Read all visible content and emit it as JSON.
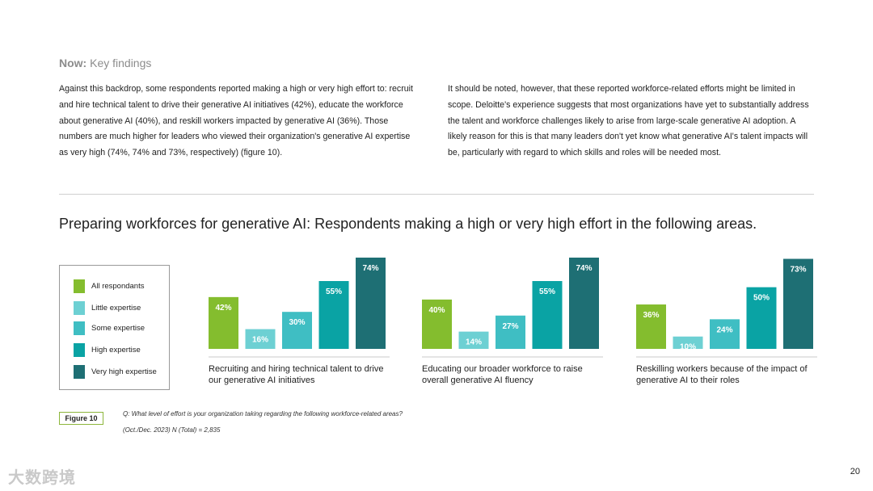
{
  "section": {
    "bold": "Now:",
    "rest": " Key findings"
  },
  "paragraphs": [
    "Against this backdrop, some respondents reported making a high or very high effort to: recruit and hire technical talent to drive their generative AI initiatives (42%), educate the workforce about generative AI (40%), and reskill workers impacted by generative AI (36%). Those numbers are much higher for leaders who viewed their organization's generative AI expertise as very high (74%, 74% and 73%, respectively) (figure 10).",
    "It should be noted, however, that these reported workforce-related efforts might be limited in scope. Deloitte's experience suggests that most organizations have yet to substantially address the talent and workforce challenges likely to arise from large-scale generative AI adoption. A likely reason for this is that many leaders don't yet know what generative AI's talent impacts will be, particularly with regard to which skills and roles will be needed most."
  ],
  "figure_label": "Figure 10",
  "question": "Q: What level of effort is your organization taking regarding the following workforce-related areas?",
  "source": "(Oct./Dec. 2023) N (Total) = 2,835",
  "page_number": "20",
  "watermark": "大数跨境",
  "colors": [
    "#84bd2e",
    "#6dd0d3",
    "#3fbec3",
    "#0aa3a4",
    "#1e6f74"
  ],
  "chart_data": {
    "type": "bar",
    "title": "Preparing workforces for generative AI: Respondents making a high or very high effort in the following areas.",
    "ylim": [
      0,
      74
    ],
    "series_names": [
      "All respondants",
      "Little expertise",
      "Some expertise",
      "High expertise",
      "Very high expertise"
    ],
    "groups": [
      {
        "label": "Recruiting and hiring technical talent to drive our generative AI initiatives",
        "values": [
          42,
          16,
          30,
          55,
          74
        ]
      },
      {
        "label": "Educating our broader workforce to raise overall generative AI fluency",
        "values": [
          40,
          14,
          27,
          55,
          74
        ]
      },
      {
        "label": "Reskilling workers because of the impact of generative AI to their roles",
        "values": [
          36,
          10,
          24,
          50,
          73
        ]
      }
    ]
  }
}
